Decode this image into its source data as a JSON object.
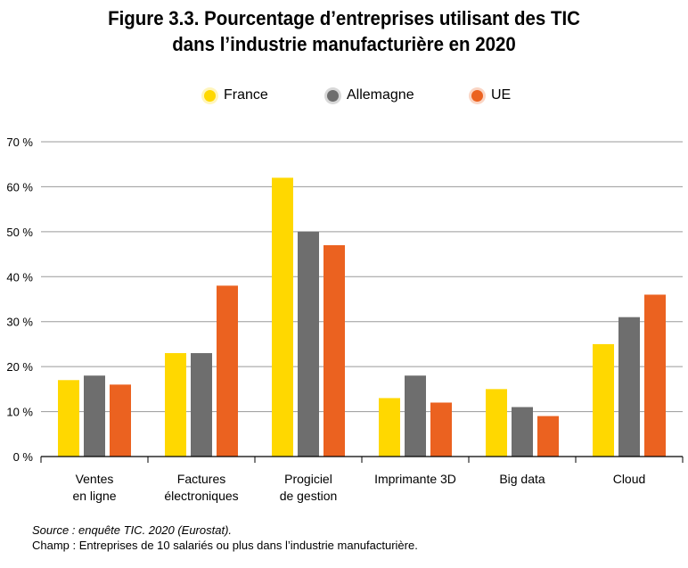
{
  "title_lines": [
    "Figure 3.3. Pourcentage d’entreprises utilisant des TIC",
    "dans l’industrie manufacturière en 2020"
  ],
  "legend": [
    {
      "label": "France",
      "color": "#FFD800"
    },
    {
      "label": "Allemagne",
      "color": "#6E6E6E"
    },
    {
      "label": "UE",
      "color": "#EB6220"
    }
  ],
  "colors": {
    "France": "#FFD800",
    "Allemagne": "#6E6E6E",
    "UE": "#EB6220",
    "grid": "#9a9a9a",
    "axis": "#000000"
  },
  "chart_data": {
    "type": "bar",
    "title": "Figure 3.3. Pourcentage d’entreprises utilisant des TIC dans l’industrie manufacturière en 2020",
    "categories": [
      [
        "Ventes",
        "en ligne"
      ],
      [
        "Factures",
        "électroniques"
      ],
      [
        "Progiciel",
        "de gestion"
      ],
      [
        "Imprimante 3D"
      ],
      [
        "Big data"
      ],
      [
        "Cloud"
      ]
    ],
    "series": [
      {
        "name": "France",
        "values": [
          17,
          23,
          62,
          13,
          15,
          25
        ]
      },
      {
        "name": "Allemagne",
        "values": [
          18,
          23,
          50,
          18,
          11,
          31
        ]
      },
      {
        "name": "UE",
        "values": [
          16,
          38,
          47,
          12,
          9,
          36
        ]
      }
    ],
    "yticks": [
      "0 %",
      "10 %",
      "20 %",
      "30 %",
      "40 %",
      "50 %",
      "60 %",
      "70 %"
    ],
    "ylim": [
      0,
      70
    ],
    "grid": true,
    "legend_position": "top-center"
  },
  "source": {
    "line1": "Source : enquête TIC. 2020 (Eurostat).",
    "line2": "Champ : Entreprises de 10 salariés ou plus dans l’industrie manufacturière."
  }
}
